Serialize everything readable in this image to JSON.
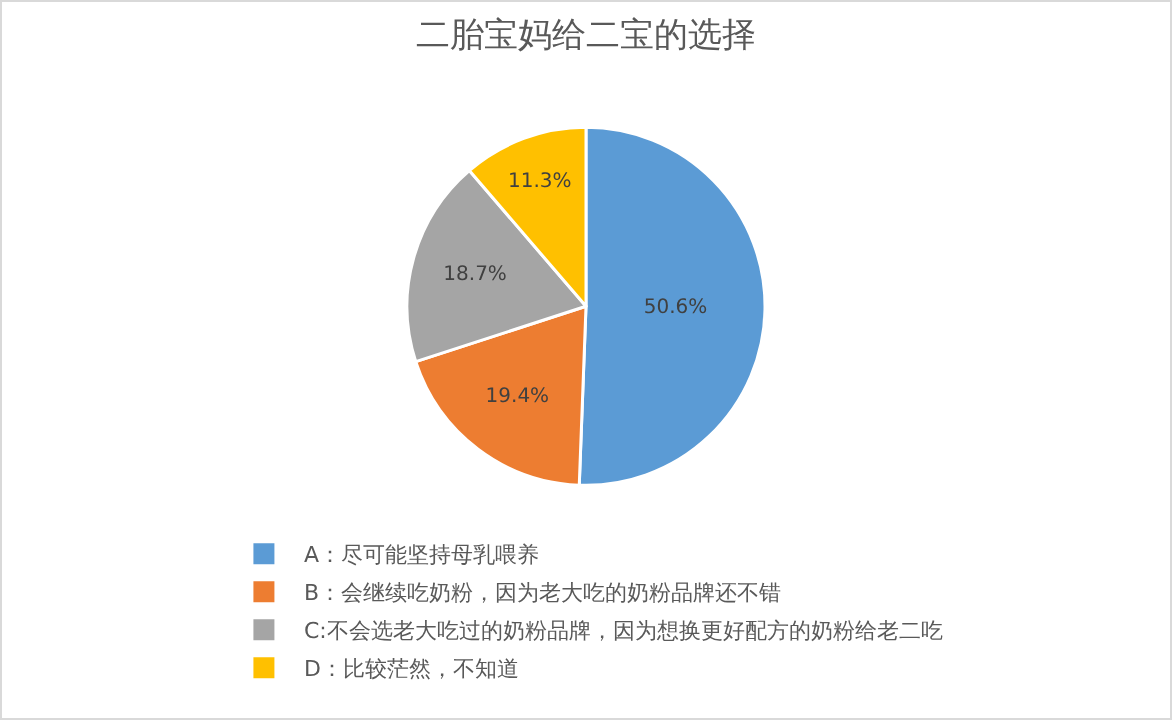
{
  "chart_data": {
    "type": "pie",
    "title": "二胎宝妈给二宝的选择",
    "categories": [
      "A：尽可能坚持母乳喂养",
      "B：会继续吃奶粉，因为老大吃的奶粉品牌还不错",
      "C:不会选老大吃过的奶粉品牌，因为想换更好配方的奶粉给老二吃",
      "D：比较茫然，不知道"
    ],
    "values": [
      50.6,
      19.4,
      18.7,
      11.3
    ],
    "colors": [
      "#5b9bd5",
      "#ed7d31",
      "#a5a5a5",
      "#ffc000"
    ],
    "value_labels": [
      "50.6%",
      "19.4%",
      "18.7%",
      "11.3%"
    ],
    "legend": "bottom left"
  }
}
